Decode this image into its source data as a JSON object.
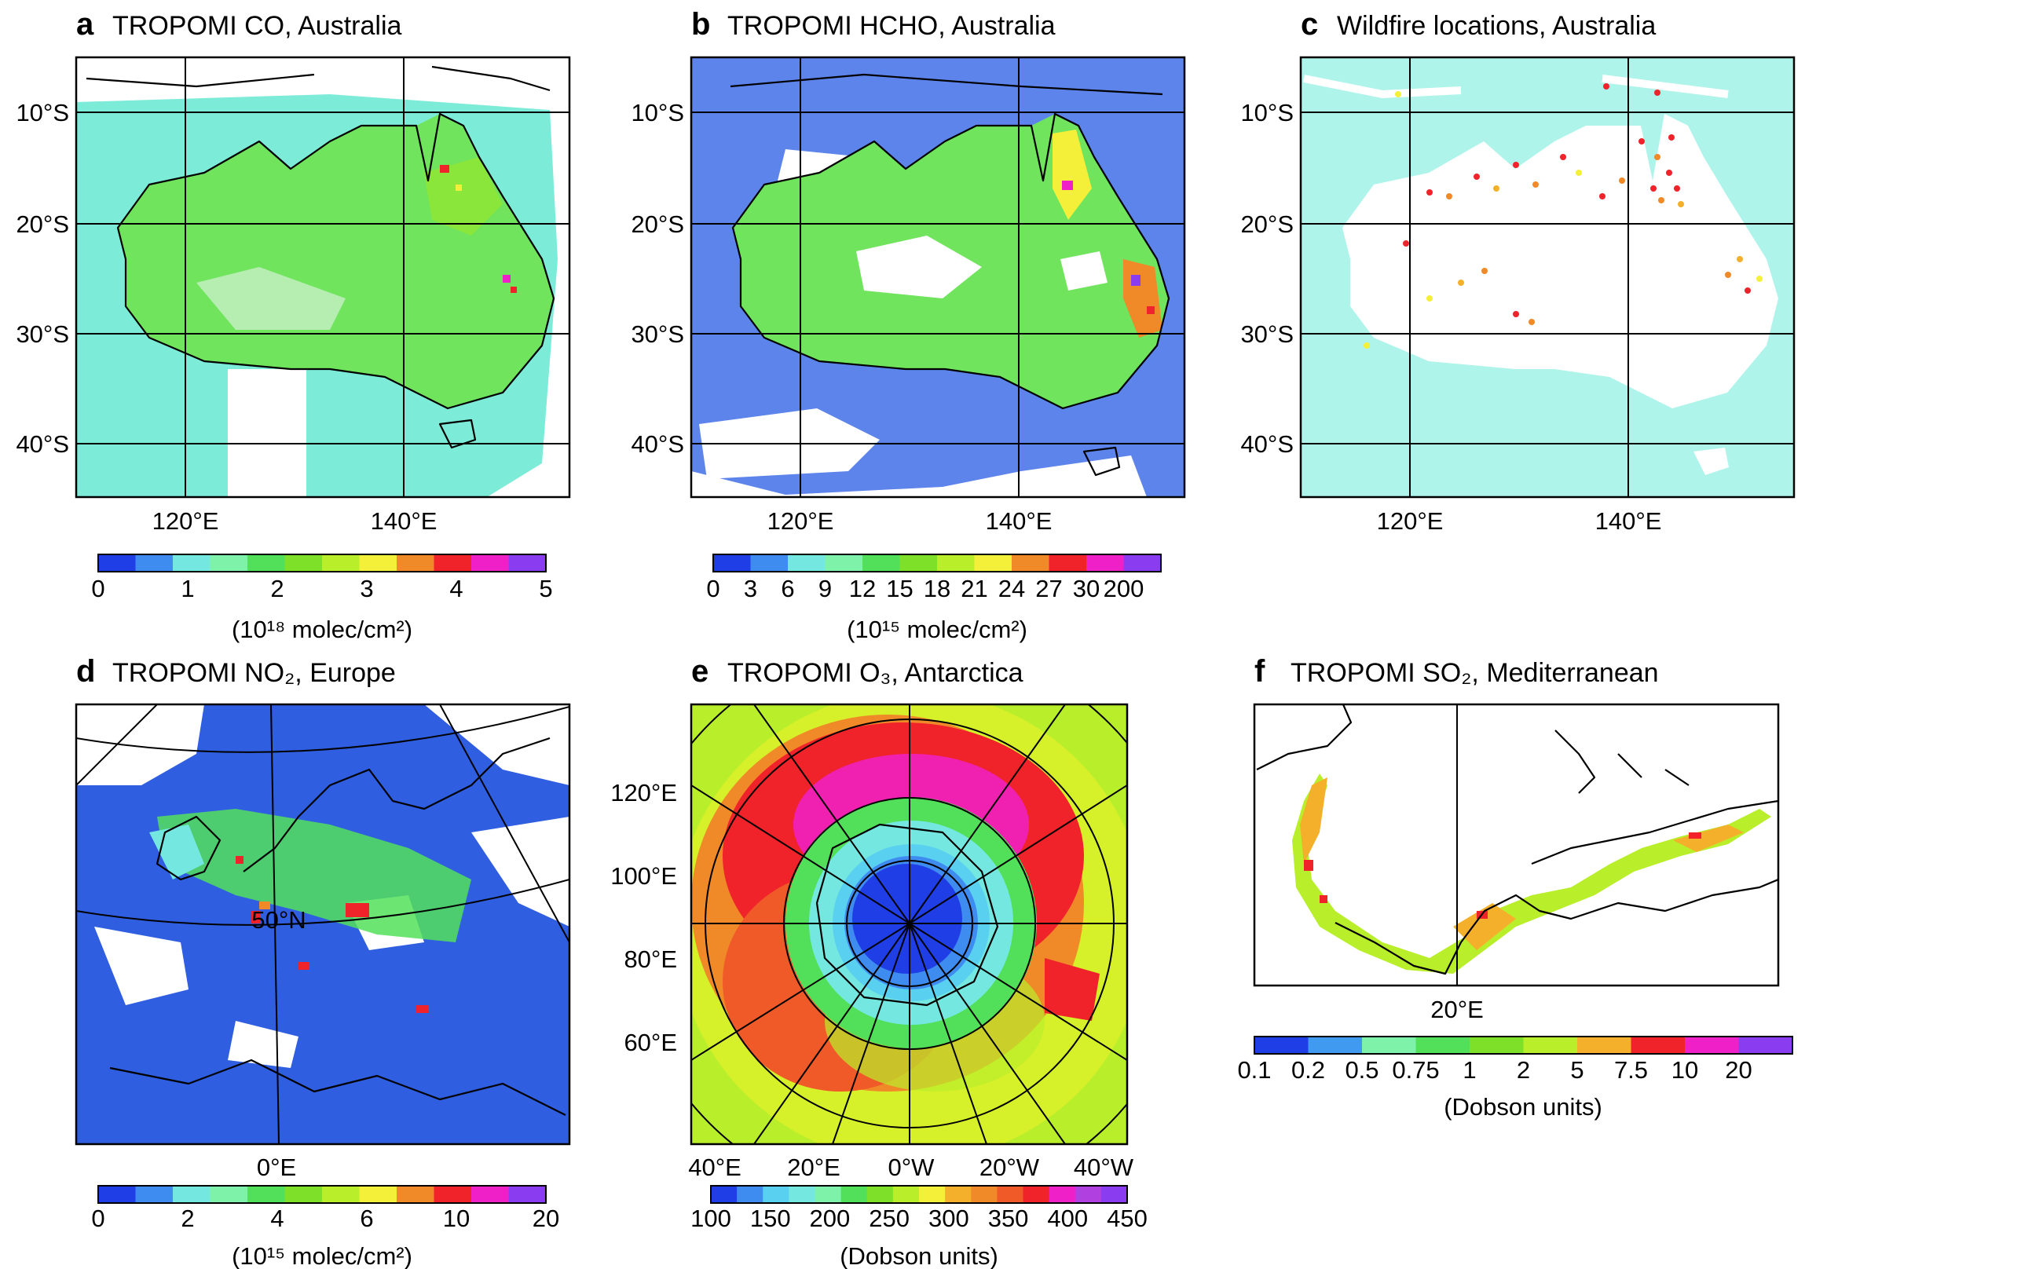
{
  "panels": {
    "a": {
      "label": "a",
      "title": "TROPOMI CO, Australia",
      "lat_ticks": [
        "10°S",
        "20°S",
        "30°S",
        "40°S"
      ],
      "lon_ticks": [
        "120°E",
        "140°E"
      ],
      "colorbar": {
        "colors": [
          "#1f3ee6",
          "#3f8cf0",
          "#74e8e0",
          "#7ef2a8",
          "#52e05a",
          "#7fe02a",
          "#b9ee2a",
          "#f4f03a",
          "#f08a28",
          "#f0222a",
          "#f020c8",
          "#8a3cf0"
        ],
        "ticks": [
          "0",
          "1",
          "2",
          "3",
          "4",
          "5"
        ],
        "units": "(10¹⁸ molec/cm²)"
      }
    },
    "b": {
      "label": "b",
      "title": "TROPOMI HCHO, Australia",
      "lat_ticks": [
        "10°S",
        "20°S",
        "30°S",
        "40°S"
      ],
      "lon_ticks": [
        "120°E",
        "140°E"
      ],
      "colorbar": {
        "colors": [
          "#1f3ee6",
          "#3f8cf0",
          "#74e8e0",
          "#7ef2a8",
          "#52e05a",
          "#7fe02a",
          "#b9ee2a",
          "#f4f03a",
          "#f08a28",
          "#f0222a",
          "#f020c8",
          "#8a3cf0"
        ],
        "ticks": [
          "0",
          "3",
          "6",
          "9",
          "12",
          "15",
          "18",
          "21",
          "24",
          "27",
          "30",
          "200"
        ],
        "units": "(10¹⁵ molec/cm²)"
      }
    },
    "c": {
      "label": "c",
      "title": "Wildfire locations, Australia",
      "lat_ticks": [
        "10°S",
        "20°S",
        "30°S",
        "40°S"
      ],
      "lon_ticks": [
        "120°E",
        "140°E"
      ]
    },
    "d": {
      "label": "d",
      "title": "TROPOMI NO₂, Europe",
      "grid_label": "50°N",
      "lon_ticks": [
        "0°E"
      ],
      "colorbar": {
        "colors": [
          "#1f3ee6",
          "#3f8cf0",
          "#74e8e0",
          "#7ef2a8",
          "#52e05a",
          "#7fe02a",
          "#b9ee2a",
          "#f4f03a",
          "#f08a28",
          "#f0222a",
          "#f020c8",
          "#8a3cf0"
        ],
        "ticks": [
          "0",
          "2",
          "4",
          "6",
          "10",
          "20"
        ],
        "units": "(10¹⁵ molec/cm²)"
      }
    },
    "e": {
      "label": "e",
      "title": "TROPOMI O₃, Antarctica",
      "lat_ticks": [
        "120°E",
        "100°E",
        "80°E",
        "60°E"
      ],
      "lon_ticks": [
        "40°E",
        "20°E",
        "0°W",
        "20°W",
        "40°W"
      ],
      "colorbar": {
        "colors": [
          "#1f3ee6",
          "#3f8cf0",
          "#5ad0f0",
          "#74e8e0",
          "#7ef2a8",
          "#52e05a",
          "#7fe02a",
          "#b9ee2a",
          "#f4f03a",
          "#f4b02a",
          "#f08a28",
          "#f05a28",
          "#f0222a",
          "#f020c8",
          "#b040e0",
          "#8a3cf0"
        ],
        "ticks": [
          "100",
          "150",
          "200",
          "250",
          "300",
          "350",
          "400",
          "450"
        ],
        "units": "(Dobson units)"
      }
    },
    "f": {
      "label": "f",
      "title": "TROPOMI SO₂, Mediterranean",
      "lon_ticks": [
        "20°E"
      ],
      "colorbar": {
        "colors": [
          "#1f3ee6",
          "#3f9af0",
          "#7ef2a8",
          "#52e05a",
          "#7fe02a",
          "#b9ee2a",
          "#f4b02a",
          "#f0222a",
          "#f020c8",
          "#8a3cf0"
        ],
        "ticks": [
          "0.1",
          "0.2",
          "0.5",
          "0.75",
          "1",
          "2",
          "5",
          "7.5",
          "10",
          "20"
        ],
        "units": "(Dobson units)"
      }
    }
  }
}
